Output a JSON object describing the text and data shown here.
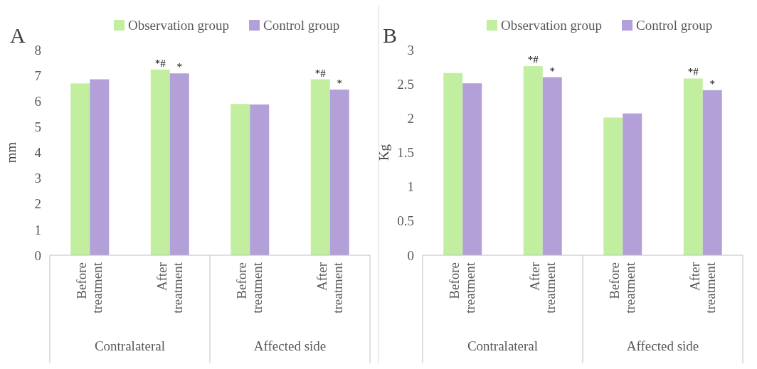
{
  "chart_data": [
    {
      "type": "bar",
      "title": "A",
      "ylabel": "mm",
      "categories": [
        "Before treatment",
        "After treatment",
        "Before treatment",
        "After treatment"
      ],
      "series": [
        {
          "name": "Observation group",
          "color": "#c2eea0",
          "values": [
            6.69,
            7.23,
            5.89,
            6.85
          ]
        },
        {
          "name": "Control group",
          "color": "#b4a0d8",
          "values": [
            6.85,
            7.08,
            5.87,
            6.45
          ]
        }
      ],
      "ylim": [
        0,
        8
      ],
      "yticks": [
        0,
        1,
        2,
        3,
        4,
        5,
        6,
        7,
        8
      ],
      "grid": false,
      "legend": "top",
      "annotations": [
        "Contralateral",
        "Affected side",
        "*#",
        "*",
        "*#",
        "*"
      ]
    },
    {
      "type": "bar",
      "title": "B",
      "ylabel": "Kg",
      "categories": [
        "Before treatment",
        "After treatment",
        "Before treatment",
        "After treatment"
      ],
      "series": [
        {
          "name": "Observation group",
          "color": "#c2eea0",
          "values": [
            2.66,
            2.76,
            2.01,
            2.58
          ]
        },
        {
          "name": "Control group",
          "color": "#b4a0d8",
          "values": [
            2.51,
            2.6,
            2.07,
            2.41
          ]
        }
      ],
      "ylim": [
        0,
        3
      ],
      "yticks": [
        0,
        0.5,
        1,
        1.5,
        2,
        2.5,
        3
      ],
      "grid": false,
      "legend": "top",
      "annotations": [
        "Contralateral",
        "Affected side",
        "*#",
        "*",
        "*#",
        "*"
      ]
    }
  ]
}
